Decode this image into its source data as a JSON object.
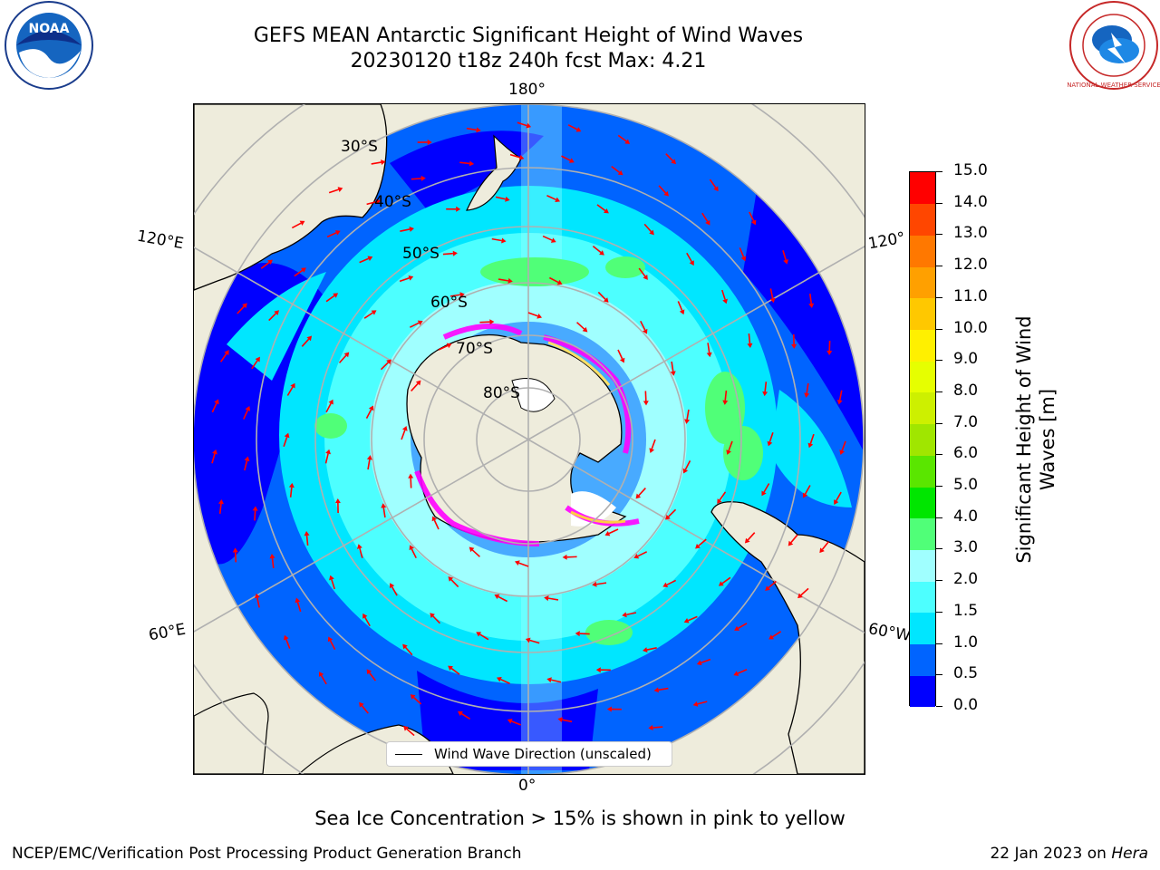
{
  "header": {
    "title_line1": "GEFS MEAN Antarctic Significant Height of Wind Waves",
    "title_line2": "20230120 t18z 240h fcst   Max: 4.21"
  },
  "logos": {
    "left": "NOAA",
    "right": "NATIONAL WEATHER SERVICE"
  },
  "map": {
    "projection": "south-polar-stereographic",
    "longitude_labels": [
      "180°",
      "120°E",
      "120°",
      "60°E",
      "60°W",
      "0°"
    ],
    "latitude_labels": [
      "30°S",
      "40°S",
      "50°S",
      "60°S",
      "70°S",
      "80°S"
    ],
    "legend_label": "Wind Wave Direction (unscaled)",
    "colors": {
      "land": "#eeecdc",
      "ice": "#ff00ff",
      "arrow": "#ff0000",
      "grid": "#b0b0b0"
    }
  },
  "colorbar": {
    "label": "Significant Height of Wind Waves [m]",
    "ticks": [
      "0.0",
      "0.5",
      "1.0",
      "1.5",
      "2.0",
      "3.0",
      "4.0",
      "5.0",
      "6.0",
      "7.0",
      "8.0",
      "9.0",
      "10.0",
      "11.0",
      "12.0",
      "13.0",
      "14.0",
      "15.0"
    ],
    "colors": [
      "#0000ff",
      "#0064ff",
      "#00e6ff",
      "#4dffff",
      "#a0ffff",
      "#50ff78",
      "#00e600",
      "#5ae600",
      "#a0e600",
      "#cdf000",
      "#e6ff00",
      "#fff000",
      "#ffc800",
      "#ffa000",
      "#ff7800",
      "#ff4600",
      "#ff0000"
    ]
  },
  "footer": {
    "note": "Sea Ice Concentration > 15% is shown in pink to yellow",
    "credit": "NCEP/EMC/Verification Post Processing Product Generation Branch",
    "date": "22 Jan 2023 on ",
    "machine": "Hera"
  }
}
